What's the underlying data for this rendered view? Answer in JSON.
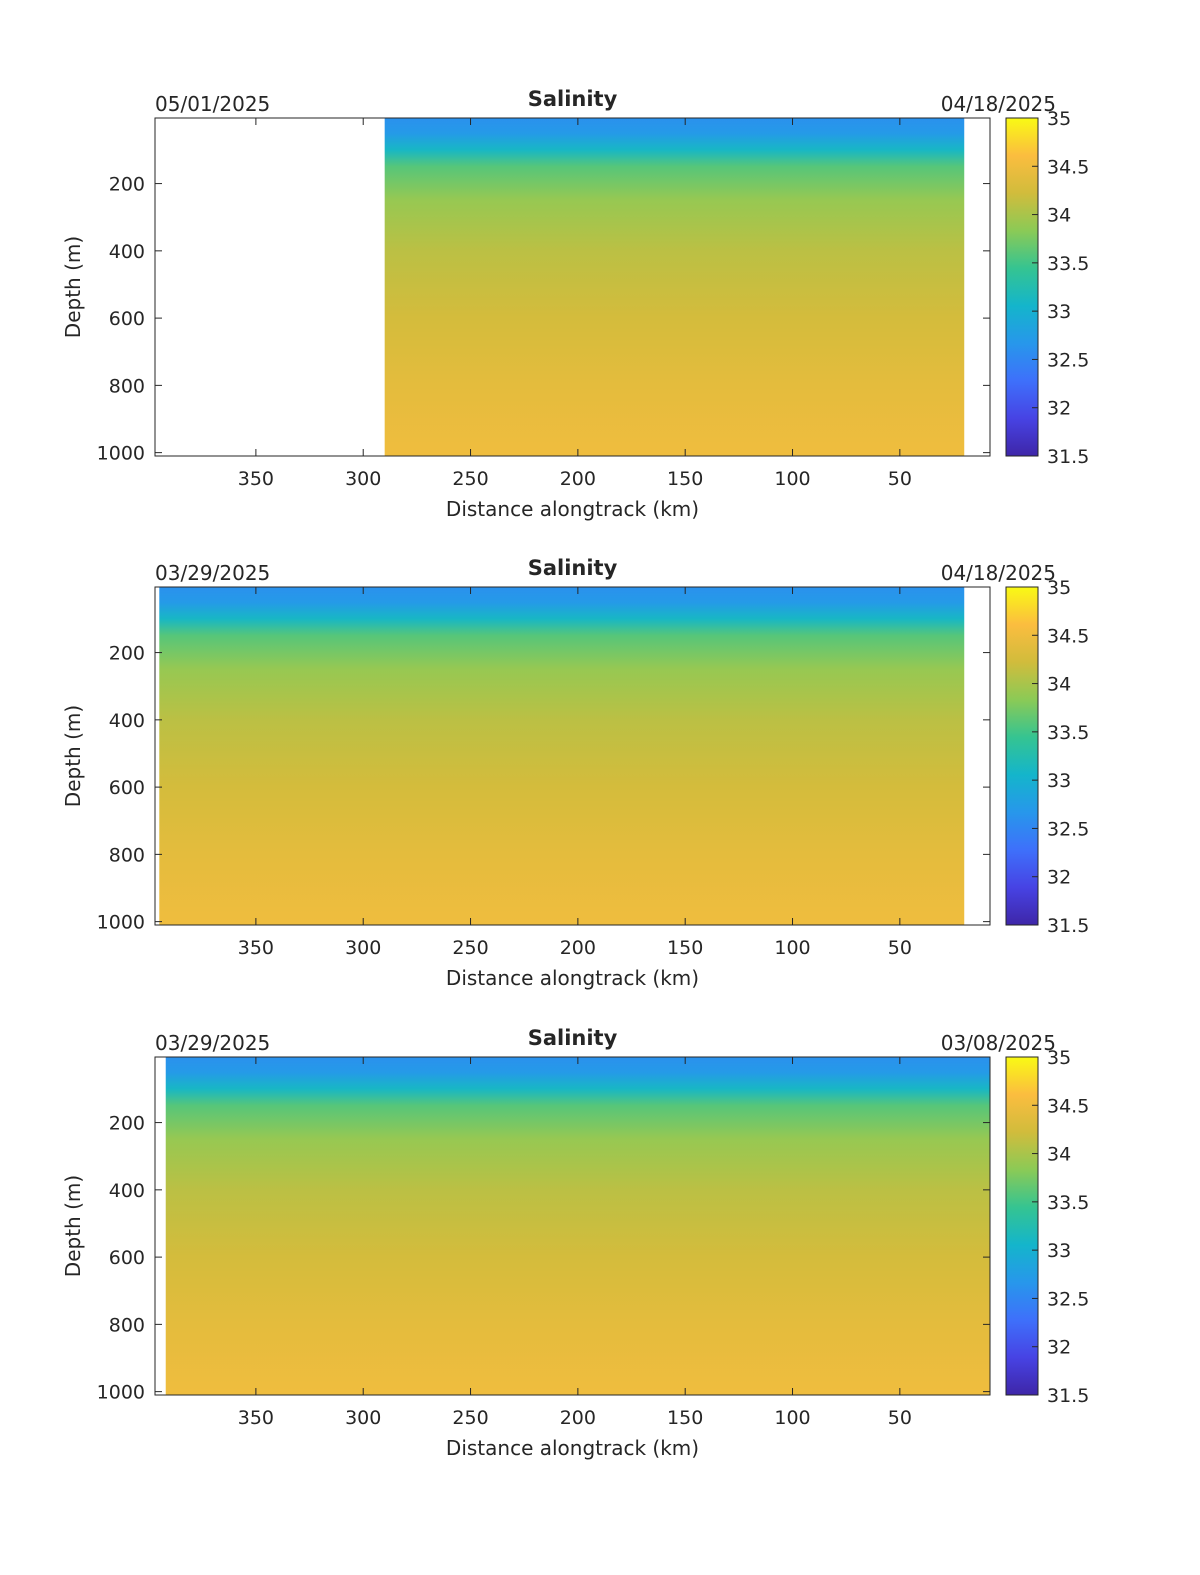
{
  "colorbar": {
    "min": 31.5,
    "max": 35,
    "ticks": [
      "31.5",
      "32",
      "32.5",
      "33",
      "33.5",
      "34",
      "34.5",
      "35"
    ],
    "colormap": [
      "#3e26a8",
      "#4743e4",
      "#3e70fb",
      "#2797eb",
      "#14b5cb",
      "#35c491",
      "#8bca56",
      "#d1bc3c",
      "#fbbd3f",
      "#f9fa14"
    ]
  },
  "chart_data": [
    {
      "type": "heatmap",
      "title": "Salinity",
      "date_left": "05/01/2025",
      "date_right": "04/18/2025",
      "xlabel": "Distance alongtrack (km)",
      "ylabel": "Depth (m)",
      "xlim": [
        397,
        8
      ],
      "ylim": [
        1010,
        5
      ],
      "x_reversed": true,
      "y_reversed": true,
      "xticks": [
        "350",
        "300",
        "250",
        "200",
        "150",
        "100",
        "50"
      ],
      "yticks": [
        "200",
        "400",
        "600",
        "800",
        "1000"
      ],
      "data_extent_km": [
        290,
        20
      ],
      "salinity_profile": [
        {
          "depth": 0,
          "salinity": 32.6
        },
        {
          "depth": 50,
          "salinity": 32.7
        },
        {
          "depth": 100,
          "salinity": 33.1
        },
        {
          "depth": 150,
          "salinity": 33.6
        },
        {
          "depth": 250,
          "salinity": 33.9
        },
        {
          "depth": 400,
          "salinity": 34.1
        },
        {
          "depth": 600,
          "salinity": 34.25
        },
        {
          "depth": 800,
          "salinity": 34.4
        },
        {
          "depth": 1000,
          "salinity": 34.5
        }
      ]
    },
    {
      "type": "heatmap",
      "title": "Salinity",
      "date_left": "03/29/2025",
      "date_right": "04/18/2025",
      "xlabel": "Distance alongtrack (km)",
      "ylabel": "Depth (m)",
      "xlim": [
        397,
        8
      ],
      "ylim": [
        1010,
        5
      ],
      "x_reversed": true,
      "y_reversed": true,
      "xticks": [
        "350",
        "300",
        "250",
        "200",
        "150",
        "100",
        "50"
      ],
      "yticks": [
        "200",
        "400",
        "600",
        "800",
        "1000"
      ],
      "data_extent_km": [
        395,
        20
      ],
      "salinity_profile": [
        {
          "depth": 0,
          "salinity": 32.6
        },
        {
          "depth": 50,
          "salinity": 32.7
        },
        {
          "depth": 100,
          "salinity": 33.1
        },
        {
          "depth": 150,
          "salinity": 33.6
        },
        {
          "depth": 250,
          "salinity": 33.9
        },
        {
          "depth": 400,
          "salinity": 34.1
        },
        {
          "depth": 600,
          "salinity": 34.25
        },
        {
          "depth": 800,
          "salinity": 34.4
        },
        {
          "depth": 1000,
          "salinity": 34.5
        }
      ]
    },
    {
      "type": "heatmap",
      "title": "Salinity",
      "date_left": "03/29/2025",
      "date_right": "03/08/2025",
      "xlabel": "Distance alongtrack (km)",
      "ylabel": "Depth (m)",
      "xlim": [
        397,
        8
      ],
      "ylim": [
        1010,
        5
      ],
      "x_reversed": true,
      "y_reversed": true,
      "xticks": [
        "350",
        "300",
        "250",
        "200",
        "150",
        "100",
        "50"
      ],
      "yticks": [
        "200",
        "400",
        "600",
        "800",
        "1000"
      ],
      "data_extent_km": [
        392,
        8
      ],
      "salinity_profile": [
        {
          "depth": 0,
          "salinity": 32.6
        },
        {
          "depth": 50,
          "salinity": 32.7
        },
        {
          "depth": 100,
          "salinity": 33.1
        },
        {
          "depth": 150,
          "salinity": 33.6
        },
        {
          "depth": 250,
          "salinity": 33.9
        },
        {
          "depth": 400,
          "salinity": 34.1
        },
        {
          "depth": 600,
          "salinity": 34.25
        },
        {
          "depth": 800,
          "salinity": 34.4
        },
        {
          "depth": 1000,
          "salinity": 34.5
        }
      ]
    }
  ]
}
